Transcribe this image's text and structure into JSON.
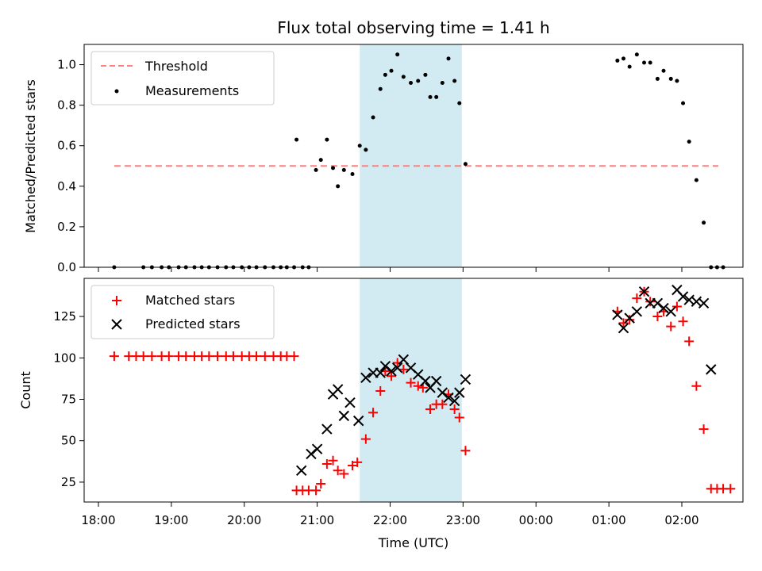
{
  "chart_data": [
    {
      "type": "scatter",
      "title": "Flux total observing time = 1.41 h",
      "xlabel": "",
      "ylabel": "Matched/Predicted stars",
      "ylim": [
        0,
        1.1
      ],
      "yticks": [
        "0.0",
        "0.2",
        "0.4",
        "0.6",
        "0.8",
        "1.0"
      ],
      "grid": false,
      "legend_position": "upper-left",
      "threshold": {
        "name": "Threshold",
        "value": 0.5,
        "x_start": "18:13",
        "x_end": "02:30",
        "color": "#ff7f7f"
      },
      "shaded_span": {
        "start": "21:35",
        "end": "22:59",
        "color": "#add8e6"
      },
      "series": [
        {
          "name": "Measurements",
          "color": "#000000",
          "points": [
            [
              "18:13",
              0.0
            ],
            [
              "18:37",
              0.0
            ],
            [
              "18:44",
              0.0
            ],
            [
              "18:52",
              0.0
            ],
            [
              "18:58",
              0.0
            ],
            [
              "19:06",
              0.0
            ],
            [
              "19:12",
              0.0
            ],
            [
              "19:19",
              0.0
            ],
            [
              "19:25",
              0.0
            ],
            [
              "19:31",
              0.0
            ],
            [
              "19:38",
              0.0
            ],
            [
              "19:45",
              0.0
            ],
            [
              "19:51",
              0.0
            ],
            [
              "19:58",
              0.0
            ],
            [
              "20:04",
              0.0
            ],
            [
              "20:10",
              0.0
            ],
            [
              "20:17",
              0.0
            ],
            [
              "20:24",
              0.0
            ],
            [
              "20:30",
              0.0
            ],
            [
              "20:35",
              0.0
            ],
            [
              "20:41",
              0.0
            ],
            [
              "20:48",
              0.0
            ],
            [
              "20:53",
              0.0
            ],
            [
              "20:43",
              0.63
            ],
            [
              "20:59",
              0.48
            ],
            [
              "21:03",
              0.53
            ],
            [
              "21:08",
              0.63
            ],
            [
              "21:13",
              0.49
            ],
            [
              "21:17",
              0.4
            ],
            [
              "21:22",
              0.48
            ],
            [
              "21:29",
              0.46
            ],
            [
              "21:35",
              0.6
            ],
            [
              "21:40",
              0.58
            ],
            [
              "21:46",
              0.74
            ],
            [
              "21:52",
              0.88
            ],
            [
              "21:56",
              0.95
            ],
            [
              "22:01",
              0.97
            ],
            [
              "22:06",
              1.05
            ],
            [
              "22:11",
              0.94
            ],
            [
              "22:17",
              0.91
            ],
            [
              "22:23",
              0.92
            ],
            [
              "22:29",
              0.95
            ],
            [
              "22:33",
              0.84
            ],
            [
              "22:38",
              0.84
            ],
            [
              "22:43",
              0.91
            ],
            [
              "22:48",
              1.03
            ],
            [
              "22:53",
              0.92
            ],
            [
              "22:57",
              0.81
            ],
            [
              "23:02",
              0.51
            ],
            [
              "01:07",
              1.02
            ],
            [
              "01:12",
              1.03
            ],
            [
              "01:17",
              0.99
            ],
            [
              "01:23",
              1.05
            ],
            [
              "01:29",
              1.01
            ],
            [
              "01:34",
              1.01
            ],
            [
              "01:40",
              0.93
            ],
            [
              "01:45",
              0.97
            ],
            [
              "01:51",
              0.93
            ],
            [
              "01:56",
              0.92
            ],
            [
              "02:01",
              0.81
            ],
            [
              "02:06",
              0.62
            ],
            [
              "02:12",
              0.43
            ],
            [
              "02:18",
              0.22
            ],
            [
              "02:24",
              0.0
            ],
            [
              "02:29",
              0.0
            ],
            [
              "02:34",
              0.0
            ]
          ]
        }
      ]
    },
    {
      "type": "scatter",
      "title": "",
      "xlabel": "Time (UTC)",
      "ylabel": "Count",
      "ylim": [
        13,
        148
      ],
      "yticks": [
        "25",
        "50",
        "75",
        "100",
        "125"
      ],
      "xticks": [
        "18:00",
        "19:00",
        "20:00",
        "21:00",
        "22:00",
        "23:00",
        "00:00",
        "01:00",
        "02:00"
      ],
      "grid": false,
      "legend_position": "upper-left",
      "shaded_span": {
        "start": "21:35",
        "end": "22:59",
        "color": "#add8e6"
      },
      "series": [
        {
          "name": "Matched stars",
          "marker": "plus",
          "color": "#ff0000",
          "points": [
            [
              "18:13",
              101
            ],
            [
              "18:25",
              101
            ],
            [
              "18:31",
              101
            ],
            [
              "18:37",
              101
            ],
            [
              "18:44",
              101
            ],
            [
              "18:52",
              101
            ],
            [
              "18:58",
              101
            ],
            [
              "19:06",
              101
            ],
            [
              "19:12",
              101
            ],
            [
              "19:19",
              101
            ],
            [
              "19:25",
              101
            ],
            [
              "19:31",
              101
            ],
            [
              "19:38",
              101
            ],
            [
              "19:45",
              101
            ],
            [
              "19:51",
              101
            ],
            [
              "19:58",
              101
            ],
            [
              "20:04",
              101
            ],
            [
              "20:10",
              101
            ],
            [
              "20:17",
              101
            ],
            [
              "20:24",
              101
            ],
            [
              "20:30",
              101
            ],
            [
              "20:35",
              101
            ],
            [
              "20:41",
              101
            ],
            [
              "20:43",
              20
            ],
            [
              "20:48",
              20
            ],
            [
              "20:53",
              20
            ],
            [
              "20:59",
              20
            ],
            [
              "21:03",
              24
            ],
            [
              "21:08",
              36
            ],
            [
              "21:13",
              38
            ],
            [
              "21:17",
              32
            ],
            [
              "21:22",
              30
            ],
            [
              "21:29",
              35
            ],
            [
              "21:33",
              37
            ],
            [
              "21:40",
              51
            ],
            [
              "21:46",
              67
            ],
            [
              "21:52",
              80
            ],
            [
              "21:56",
              92
            ],
            [
              "22:01",
              89
            ],
            [
              "22:06",
              97
            ],
            [
              "22:11",
              93
            ],
            [
              "22:17",
              85
            ],
            [
              "22:23",
              83
            ],
            [
              "22:27",
              82
            ],
            [
              "22:33",
              69
            ],
            [
              "22:38",
              72
            ],
            [
              "22:43",
              72
            ],
            [
              "22:48",
              78
            ],
            [
              "22:53",
              69
            ],
            [
              "22:57",
              64
            ],
            [
              "23:02",
              44
            ],
            [
              "01:07",
              128
            ],
            [
              "01:12",
              121
            ],
            [
              "01:17",
              123
            ],
            [
              "01:23",
              136
            ],
            [
              "01:29",
              140
            ],
            [
              "01:34",
              134
            ],
            [
              "01:40",
              125
            ],
            [
              "01:45",
              128
            ],
            [
              "01:51",
              119
            ],
            [
              "01:56",
              131
            ],
            [
              "02:01",
              122
            ],
            [
              "02:06",
              110
            ],
            [
              "02:12",
              83
            ],
            [
              "02:18",
              57
            ],
            [
              "02:24",
              21
            ],
            [
              "02:29",
              21
            ],
            [
              "02:34",
              21
            ],
            [
              "02:40",
              21
            ]
          ]
        },
        {
          "name": "Predicted stars",
          "marker": "x",
          "color": "#000000",
          "points": [
            [
              "20:47",
              32
            ],
            [
              "20:55",
              42
            ],
            [
              "21:00",
              45
            ],
            [
              "21:08",
              57
            ],
            [
              "21:13",
              78
            ],
            [
              "21:17",
              81
            ],
            [
              "21:22",
              65
            ],
            [
              "21:27",
              73
            ],
            [
              "21:34",
              62
            ],
            [
              "21:40",
              88
            ],
            [
              "21:46",
              91
            ],
            [
              "21:52",
              91
            ],
            [
              "21:56",
              95
            ],
            [
              "22:01",
              92
            ],
            [
              "22:06",
              94
            ],
            [
              "22:11",
              99
            ],
            [
              "22:17",
              94
            ],
            [
              "22:23",
              90
            ],
            [
              "22:29",
              86
            ],
            [
              "22:33",
              82
            ],
            [
              "22:38",
              86
            ],
            [
              "22:43",
              79
            ],
            [
              "22:48",
              76
            ],
            [
              "22:53",
              74
            ],
            [
              "22:57",
              79
            ],
            [
              "23:02",
              87
            ],
            [
              "01:07",
              126
            ],
            [
              "01:12",
              118
            ],
            [
              "01:17",
              124
            ],
            [
              "01:23",
              128
            ],
            [
              "01:29",
              140
            ],
            [
              "01:34",
              133
            ],
            [
              "01:40",
              133
            ],
            [
              "01:45",
              130
            ],
            [
              "01:51",
              128
            ],
            [
              "01:56",
              141
            ],
            [
              "02:01",
              137
            ],
            [
              "02:06",
              135
            ],
            [
              "02:12",
              134
            ],
            [
              "02:18",
              133
            ],
            [
              "02:24",
              93
            ]
          ]
        }
      ]
    }
  ]
}
